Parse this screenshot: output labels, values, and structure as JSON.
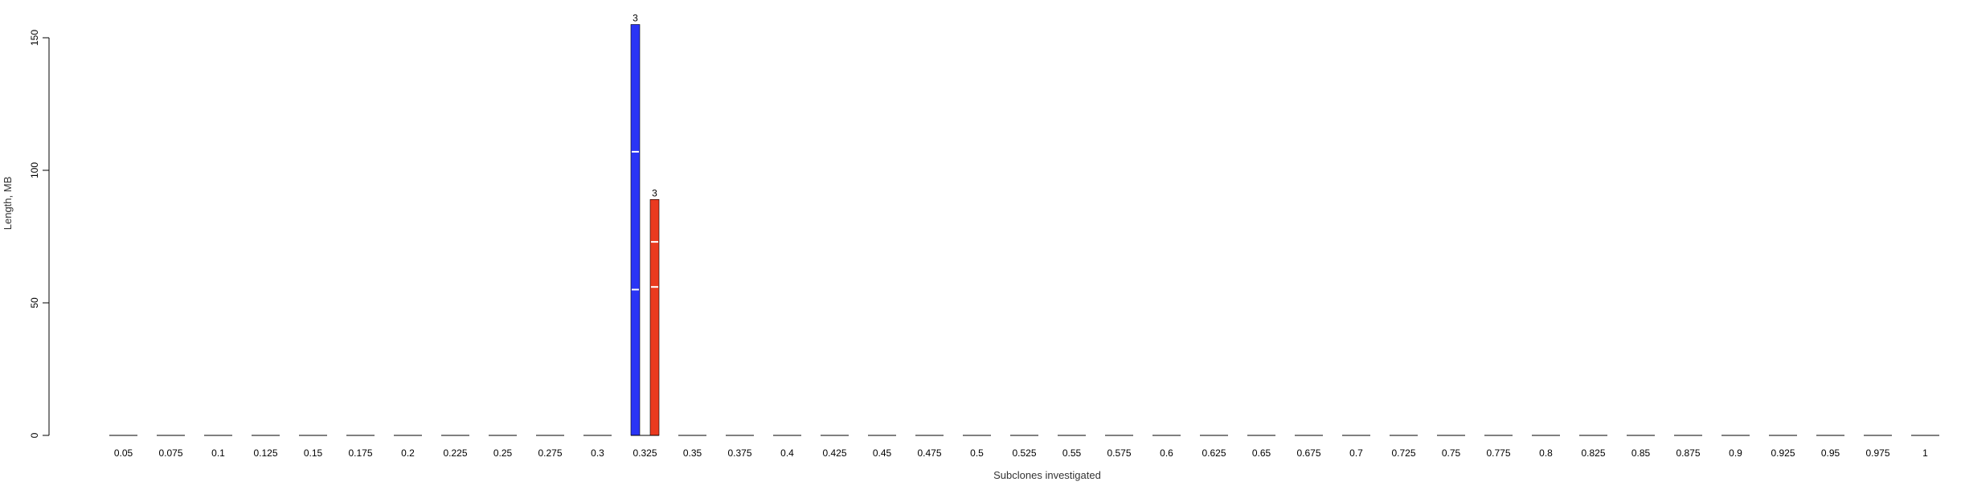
{
  "chart_data": {
    "type": "bar",
    "xlabel": "Subclones investigated",
    "ylabel": "Length, MB",
    "ylim": [
      0,
      150
    ],
    "yticks": [
      "0",
      "50",
      "100",
      "150"
    ],
    "grid": false,
    "categories": [
      "0.05",
      "0.075",
      "0.1",
      "0.125",
      "0.15",
      "0.175",
      "0.2",
      "0.225",
      "0.25",
      "0.275",
      "0.3",
      "0.325",
      "0.35",
      "0.375",
      "0.4",
      "0.425",
      "0.45",
      "0.475",
      "0.5",
      "0.525",
      "0.55",
      "0.575",
      "0.6",
      "0.625",
      "0.65",
      "0.675",
      "0.7",
      "0.725",
      "0.75",
      "0.775",
      "0.8",
      "0.825",
      "0.85",
      "0.875",
      "0.9",
      "0.925",
      "0.95",
      "0.975",
      "1"
    ],
    "series": [
      {
        "color": "#2a35f5",
        "values": [
          0,
          0,
          0,
          0,
          0,
          0,
          0,
          0,
          0,
          0,
          0,
          155,
          0,
          0,
          0,
          0,
          0,
          0,
          0,
          0,
          0,
          0,
          0,
          0,
          0,
          0,
          0,
          0,
          0,
          0,
          0,
          0,
          0,
          0,
          0,
          0,
          0,
          0,
          0
        ],
        "segments": {
          "0.325": [
            55,
            52,
            48
          ]
        },
        "labels": {
          "0.325": "3"
        }
      },
      {
        "color": "#ea3a1f",
        "values": [
          0,
          0,
          0,
          0,
          0,
          0,
          0,
          0,
          0,
          0,
          0,
          89,
          0,
          0,
          0,
          0,
          0,
          0,
          0,
          0,
          0,
          0,
          0,
          0,
          0,
          0,
          0,
          0,
          0,
          0,
          0,
          0,
          0,
          0,
          0,
          0,
          0,
          0,
          0
        ],
        "segments": {
          "0.325": [
            56,
            17,
            16
          ]
        },
        "labels": {
          "0.325": "3"
        }
      }
    ]
  }
}
